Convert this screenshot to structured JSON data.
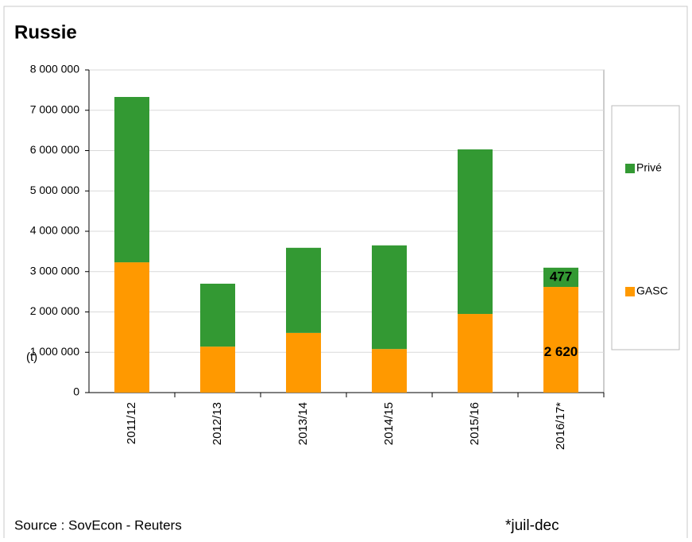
{
  "chart_data": {
    "type": "stacked_bar",
    "title": "Russie",
    "y_label": "(t)",
    "source": "Source : SovEcon - Reuters",
    "note": "*juil-dec",
    "categories": [
      "2011/12",
      "2012/13",
      "2013/14",
      "2014/15",
      "2015/16",
      "2016/17*"
    ],
    "series": [
      {
        "name": "GASC",
        "color": "#ff9900",
        "values": [
          3230000,
          1140000,
          1480000,
          1080000,
          1950000,
          2620000
        ],
        "value_labels": [
          null,
          null,
          null,
          null,
          null,
          "2 620"
        ]
      },
      {
        "name": "Privé",
        "color": "#339933",
        "values": [
          4100000,
          1560000,
          2110000,
          2570000,
          4080000,
          477000
        ],
        "value_labels": [
          null,
          null,
          null,
          null,
          null,
          "477"
        ]
      }
    ],
    "ylim": [
      0,
      8000000
    ],
    "yticks": [
      {
        "value": 0,
        "label": "0"
      },
      {
        "value": 1000000,
        "label": "1 000 000"
      },
      {
        "value": 2000000,
        "label": "2 000 000"
      },
      {
        "value": 3000000,
        "label": "3 000 000"
      },
      {
        "value": 4000000,
        "label": "4 000 000"
      },
      {
        "value": 5000000,
        "label": "5 000 000"
      },
      {
        "value": 6000000,
        "label": "6 000 000"
      },
      {
        "value": 7000000,
        "label": "7 000 000"
      },
      {
        "value": 8000000,
        "label": "8 000 000"
      }
    ],
    "grid": true
  }
}
